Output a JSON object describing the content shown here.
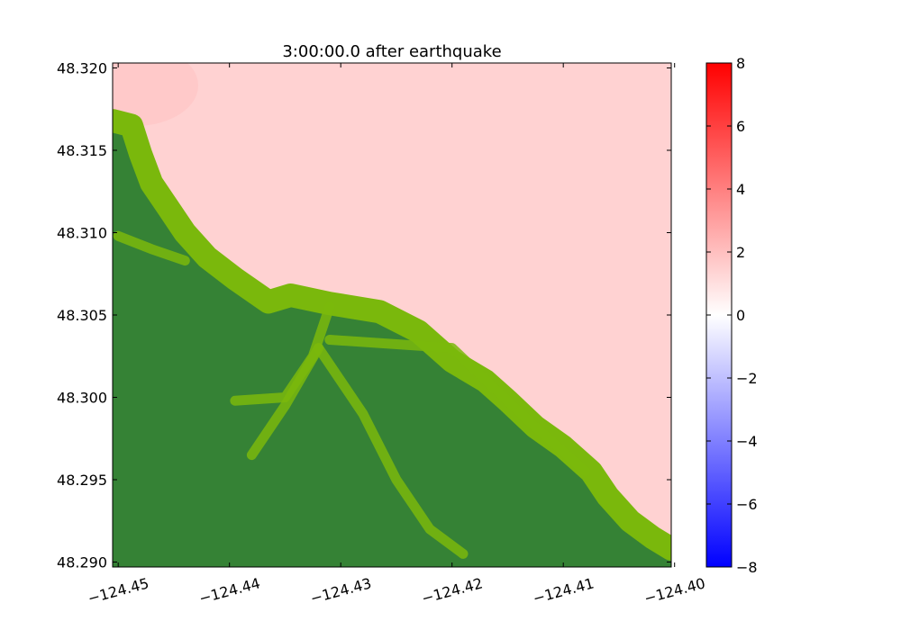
{
  "chart_data": {
    "type": "heatmap",
    "title": "3:00:00.0 after earthquake",
    "xlabel": "",
    "ylabel": "",
    "xlim": [
      -124.4505,
      -124.4003
    ],
    "ylim": [
      48.2897,
      48.3203
    ],
    "x_ticks": [
      {
        "value": -124.45,
        "label": "−124.45"
      },
      {
        "value": -124.44,
        "label": "−124.44"
      },
      {
        "value": -124.43,
        "label": "−124.43"
      },
      {
        "value": -124.42,
        "label": "−124.42"
      },
      {
        "value": -124.41,
        "label": "−124.41"
      },
      {
        "value": -124.4,
        "label": "−124.40"
      }
    ],
    "y_ticks": [
      {
        "value": 48.29,
        "label": "48.290"
      },
      {
        "value": 48.295,
        "label": "48.295"
      },
      {
        "value": 48.3,
        "label": "48.300"
      },
      {
        "value": 48.305,
        "label": "48.305"
      },
      {
        "value": 48.31,
        "label": "48.310"
      },
      {
        "value": 48.315,
        "label": "48.315"
      },
      {
        "value": 48.32,
        "label": "48.320"
      }
    ],
    "colorbar": {
      "range": [
        -8,
        8
      ],
      "colors": [
        "#0000ff",
        "#ffffff",
        "#ff0000"
      ],
      "ticks": [
        {
          "value": 8,
          "label": "8"
        },
        {
          "value": 6,
          "label": "6"
        },
        {
          "value": 4,
          "label": "4"
        },
        {
          "value": 2,
          "label": "2"
        },
        {
          "value": 0,
          "label": "0"
        },
        {
          "value": -2,
          "label": "−2"
        },
        {
          "value": -4,
          "label": "−4"
        },
        {
          "value": -6,
          "label": "−6"
        },
        {
          "value": -8,
          "label": "−8"
        }
      ]
    },
    "water_surface_value": 1.1,
    "water_color": "#ffd2d2",
    "land_colors": {
      "dark": "#358235",
      "light": "#7ab80c"
    },
    "shoreline": [
      [
        -124.4505,
        48.3168
      ],
      [
        -124.4488,
        48.3165
      ],
      [
        -124.448,
        48.3148
      ],
      [
        -124.447,
        48.313
      ],
      [
        -124.4455,
        48.3115
      ],
      [
        -124.444,
        48.31
      ],
      [
        -124.442,
        48.3085
      ],
      [
        -124.4395,
        48.3072
      ],
      [
        -124.4365,
        48.3058
      ],
      [
        -124.4345,
        48.3062
      ],
      [
        -124.431,
        48.3057
      ],
      [
        -124.4265,
        48.3052
      ],
      [
        -124.423,
        48.304
      ],
      [
        -124.42,
        48.3022
      ],
      [
        -124.417,
        48.301
      ],
      [
        -124.415,
        48.2998
      ],
      [
        -124.4125,
        48.2982
      ],
      [
        -124.41,
        48.297
      ],
      [
        -124.4075,
        48.2955
      ],
      [
        -124.406,
        48.294
      ],
      [
        -124.404,
        48.2925
      ],
      [
        -124.402,
        48.2915
      ],
      [
        -124.4003,
        48.2908
      ]
    ],
    "valleys": [
      [
        [
          -124.4395,
          48.2998
        ],
        [
          -124.435,
          48.3
        ],
        [
          -124.4325,
          48.3025
        ],
        [
          -124.431,
          48.3055
        ]
      ],
      [
        [
          -124.438,
          48.2965
        ],
        [
          -124.435,
          48.2995
        ],
        [
          -124.432,
          48.303
        ]
      ],
      [
        [
          -124.432,
          48.303
        ],
        [
          -124.428,
          48.299
        ],
        [
          -124.425,
          48.295
        ],
        [
          -124.422,
          48.292
        ],
        [
          -124.419,
          48.2905
        ]
      ],
      [
        [
          -124.431,
          48.3035
        ],
        [
          -124.42,
          48.303
        ],
        [
          -124.413,
          48.2985
        ],
        [
          -124.408,
          48.2955
        ]
      ],
      [
        [
          -124.45,
          48.3098
        ],
        [
          -124.447,
          48.309
        ],
        [
          -124.444,
          48.3083
        ]
      ]
    ]
  }
}
